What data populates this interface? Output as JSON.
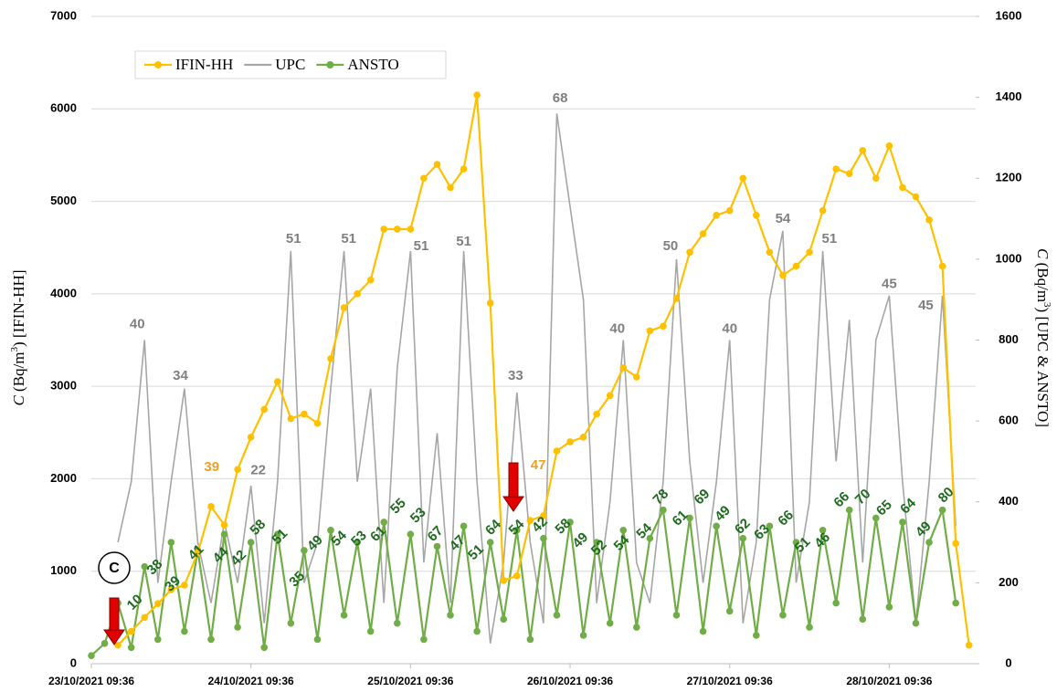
{
  "chart_data": {
    "type": "line",
    "ylabel": [
      "C",
      " (Bq/m",
      "3",
      ") [IFIN-HH]"
    ],
    "y2label": [
      "C",
      " (Bq/m",
      "3",
      ") [UPC & ANSTO]"
    ],
    "marker_label": "C",
    "xlim": [
      0,
      133
    ],
    "xticks": [
      {
        "value": 0,
        "label": "23/10/2021 09:36"
      },
      {
        "value": 24,
        "label": "24/10/2021 09:36"
      },
      {
        "value": 48,
        "label": "25/10/2021 09:36"
      },
      {
        "value": 72,
        "label": "26/10/2021 09:36"
      },
      {
        "value": 96,
        "label": "27/10/2021 09:36"
      },
      {
        "value": 120,
        "label": "28/10/2021 09:36"
      }
    ],
    "ylim": [
      0,
      7000
    ],
    "yticks": [
      0,
      1000,
      2000,
      3000,
      4000,
      5000,
      6000,
      7000
    ],
    "y2lim": [
      0,
      1600
    ],
    "y2ticks": [
      0,
      200,
      400,
      600,
      800,
      1000,
      1200,
      1400,
      1600
    ],
    "grid": true,
    "legend": "top-left",
    "x": [
      0,
      2,
      4,
      6,
      8,
      10,
      12,
      14,
      16,
      18,
      20,
      22,
      24,
      26,
      28,
      30,
      32,
      34,
      36,
      38,
      40,
      42,
      44,
      46,
      48,
      50,
      52,
      54,
      56,
      58,
      60,
      62,
      64,
      66,
      68,
      70,
      72,
      74,
      76,
      78,
      80,
      82,
      84,
      86,
      88,
      90,
      92,
      94,
      96,
      98,
      100,
      102,
      104,
      106,
      108,
      110,
      112,
      114,
      116,
      118,
      120,
      122,
      124,
      126,
      128,
      130,
      132
    ],
    "series": [
      {
        "name": "IFIN-HH",
        "color": "#ffc000",
        "marker": true,
        "axis": "y",
        "values": [
          null,
          null,
          200,
          350,
          500,
          650,
          800,
          850,
          1200,
          1700,
          1500,
          2100,
          2450,
          2750,
          3050,
          2650,
          2700,
          2600,
          3300,
          3850,
          4000,
          4150,
          4700,
          4700,
          4700,
          5250,
          5400,
          5150,
          5350,
          6150,
          3900,
          900,
          950,
          1550,
          1600,
          2300,
          2400,
          2450,
          2700,
          2900,
          3200,
          3100,
          3600,
          3650,
          3950,
          4450,
          4650,
          4850,
          4900,
          5250,
          4850,
          4450,
          4200,
          4300,
          4450,
          4900,
          5350,
          5300,
          5550,
          5250,
          5600,
          5150,
          5050,
          4800,
          4300,
          1300,
          200
        ]
      },
      {
        "name": "UPC",
        "color": "#a6a6a6",
        "marker": false,
        "axis": "y2",
        "values": [
          null,
          null,
          300,
          450,
          800,
          200,
          450,
          680,
          300,
          150,
          350,
          200,
          440,
          100,
          450,
          1020,
          200,
          300,
          680,
          1020,
          450,
          680,
          150,
          730,
          1020,
          250,
          570,
          150,
          1020,
          450,
          50,
          250,
          670,
          300,
          100,
          1360,
          1130,
          900,
          150,
          400,
          800,
          250,
          150,
          450,
          1000,
          500,
          200,
          450,
          800,
          100,
          300,
          900,
          1070,
          200,
          400,
          1020,
          500,
          850,
          250,
          800,
          910,
          450,
          100,
          450,
          910,
          340,
          null
        ]
      },
      {
        "name": "ANSTO",
        "color": "#70ad47",
        "marker": true,
        "axis": "y2",
        "values": [
          20,
          50,
          150,
          40,
          240,
          60,
          300,
          80,
          280,
          60,
          320,
          90,
          300,
          40,
          320,
          100,
          280,
          60,
          330,
          120,
          300,
          80,
          350,
          100,
          320,
          60,
          290,
          120,
          340,
          80,
          300,
          110,
          330,
          60,
          310,
          120,
          350,
          70,
          300,
          100,
          330,
          90,
          310,
          380,
          120,
          360,
          80,
          340,
          130,
          310,
          70,
          340,
          120,
          300,
          90,
          330,
          150,
          380,
          110,
          360,
          140,
          350,
          100,
          300,
          380,
          150,
          null
        ]
      }
    ],
    "upc_labels": [
      {
        "text": "40",
        "x": 6.9,
        "y": 3670
      },
      {
        "text": "34",
        "x": 13.4,
        "y": 3110
      },
      {
        "text": "22",
        "x": 25.1,
        "y": 2090
      },
      {
        "text": "51",
        "x": 30.4,
        "y": 4590
      },
      {
        "text": "51",
        "x": 38.7,
        "y": 4590
      },
      {
        "text": "51",
        "x": 49.6,
        "y": 4510
      },
      {
        "text": "51",
        "x": 56,
        "y": 4560
      },
      {
        "text": "33",
        "x": 63.8,
        "y": 3110
      },
      {
        "text": "68",
        "x": 70.5,
        "y": 6110
      },
      {
        "text": "40",
        "x": 79.1,
        "y": 3620
      },
      {
        "text": "50",
        "x": 87.1,
        "y": 4510
      },
      {
        "text": "40",
        "x": 96,
        "y": 3620
      },
      {
        "text": "54",
        "x": 104,
        "y": 4810
      },
      {
        "text": "51",
        "x": 111,
        "y": 4590
      },
      {
        "text": "45",
        "x": 120,
        "y": 4100
      },
      {
        "text": "45",
        "x": 125.5,
        "y": 3870
      }
    ],
    "ifin_labels": [
      {
        "text": "39",
        "x": 18.1,
        "y": 2120
      },
      {
        "text": "47",
        "x": 67.2,
        "y": 2140
      }
    ],
    "ansto_labels": [
      {
        "text": "10",
        "x": 6.6,
        "y": 660
      },
      {
        "text": "38",
        "x": 9.6,
        "y": 1040
      },
      {
        "text": "39",
        "x": 12.3,
        "y": 860
      },
      {
        "text": "41",
        "x": 15.8,
        "y": 1200
      },
      {
        "text": "44",
        "x": 19.5,
        "y": 1170
      },
      {
        "text": "42",
        "x": 22.2,
        "y": 1140
      },
      {
        "text": "58",
        "x": 25.1,
        "y": 1470
      },
      {
        "text": "51",
        "x": 28.4,
        "y": 1370
      },
      {
        "text": "35",
        "x": 31,
        "y": 910
      },
      {
        "text": "49",
        "x": 33.7,
        "y": 1300
      },
      {
        "text": "54",
        "x": 37.3,
        "y": 1350
      },
      {
        "text": "53",
        "x": 40.3,
        "y": 1350
      },
      {
        "text": "61",
        "x": 43.2,
        "y": 1400
      },
      {
        "text": "55",
        "x": 46.2,
        "y": 1700
      },
      {
        "text": "53",
        "x": 49.2,
        "y": 1600
      },
      {
        "text": "67",
        "x": 51.8,
        "y": 1400
      },
      {
        "text": "47",
        "x": 55.1,
        "y": 1300
      },
      {
        "text": "51",
        "x": 57.9,
        "y": 1200
      },
      {
        "text": "64",
        "x": 60.5,
        "y": 1470
      },
      {
        "text": "54",
        "x": 64,
        "y": 1470
      },
      {
        "text": "42",
        "x": 67.5,
        "y": 1500
      },
      {
        "text": "58",
        "x": 71,
        "y": 1480
      },
      {
        "text": "49",
        "x": 73.6,
        "y": 1330
      },
      {
        "text": "52",
        "x": 76.4,
        "y": 1250
      },
      {
        "text": "54",
        "x": 79.8,
        "y": 1300
      },
      {
        "text": "54",
        "x": 83.2,
        "y": 1430
      },
      {
        "text": "78",
        "x": 85.7,
        "y": 1800
      },
      {
        "text": "61",
        "x": 88.6,
        "y": 1570
      },
      {
        "text": "69",
        "x": 91.9,
        "y": 1800
      },
      {
        "text": "49",
        "x": 95,
        "y": 1620
      },
      {
        "text": "62",
        "x": 98,
        "y": 1480
      },
      {
        "text": "63",
        "x": 100.9,
        "y": 1420
      },
      {
        "text": "66",
        "x": 104.5,
        "y": 1570
      },
      {
        "text": "51",
        "x": 107,
        "y": 1280
      },
      {
        "text": "46",
        "x": 110,
        "y": 1330
      },
      {
        "text": "66",
        "x": 112.9,
        "y": 1770
      },
      {
        "text": "70",
        "x": 116.1,
        "y": 1800
      },
      {
        "text": "65",
        "x": 119.3,
        "y": 1680
      },
      {
        "text": "64",
        "x": 122.9,
        "y": 1700
      },
      {
        "text": "49",
        "x": 125.2,
        "y": 1450
      },
      {
        "text": "80",
        "x": 128.6,
        "y": 1820
      }
    ]
  }
}
